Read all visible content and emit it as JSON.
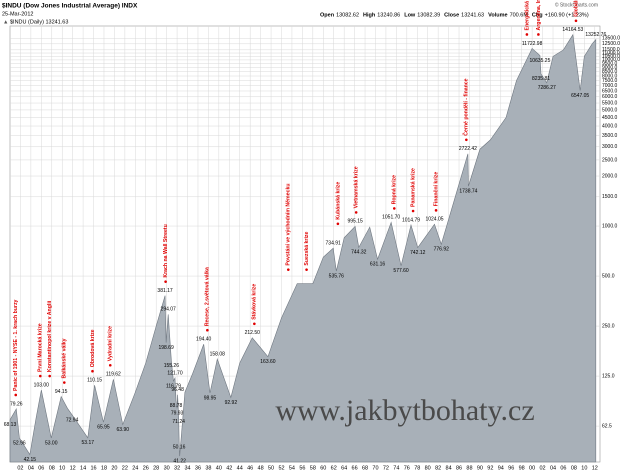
{
  "chart_data": {
    "type": "area",
    "title": "$INDU (Dow Jones Industrial Average) INDX",
    "subtitle": "25-Mar-2012",
    "credit": "© StockCharts.com",
    "legend_text": "$INDU (Daily) 13241.63",
    "quote": [
      {
        "label": "Open",
        "value": "13082.62"
      },
      {
        "label": "High",
        "value": "13240.86"
      },
      {
        "label": "Low",
        "value": "13082.39"
      },
      {
        "label": "Close",
        "value": "13241.63"
      },
      {
        "label": "Volume",
        "value": "700.6M"
      },
      {
        "label": "Chg",
        "value": "+160.90 (+1.23%)"
      }
    ],
    "watermark": "www.jakbytbohaty.cz",
    "log_scale": true,
    "grid": true,
    "xlim": [
      1900,
      2013
    ],
    "ylim": [
      38,
      16000
    ],
    "xticks": [
      {
        "value": 1902,
        "label": "02"
      },
      {
        "value": 1904,
        "label": "04"
      },
      {
        "value": 1906,
        "label": "06"
      },
      {
        "value": 1908,
        "label": "08"
      },
      {
        "value": 1910,
        "label": "10"
      },
      {
        "value": 1912,
        "label": "12"
      },
      {
        "value": 1914,
        "label": "14"
      },
      {
        "value": 1916,
        "label": "16"
      },
      {
        "value": 1918,
        "label": "18"
      },
      {
        "value": 1920,
        "label": "20"
      },
      {
        "value": 1922,
        "label": "22"
      },
      {
        "value": 1924,
        "label": "24"
      },
      {
        "value": 1926,
        "label": "26"
      },
      {
        "value": 1928,
        "label": "28"
      },
      {
        "value": 1930,
        "label": "30"
      },
      {
        "value": 1932,
        "label": "32"
      },
      {
        "value": 1934,
        "label": "34"
      },
      {
        "value": 1936,
        "label": "36"
      },
      {
        "value": 1938,
        "label": "38"
      },
      {
        "value": 1940,
        "label": "40"
      },
      {
        "value": 1942,
        "label": "42"
      },
      {
        "value": 1944,
        "label": "44"
      },
      {
        "value": 1946,
        "label": "46"
      },
      {
        "value": 1948,
        "label": "48"
      },
      {
        "value": 1950,
        "label": "50"
      },
      {
        "value": 1952,
        "label": "52"
      },
      {
        "value": 1954,
        "label": "54"
      },
      {
        "value": 1956,
        "label": "56"
      },
      {
        "value": 1958,
        "label": "58"
      },
      {
        "value": 1960,
        "label": "60"
      },
      {
        "value": 1962,
        "label": "62"
      },
      {
        "value": 1964,
        "label": "64"
      },
      {
        "value": 1966,
        "label": "66"
      },
      {
        "value": 1968,
        "label": "68"
      },
      {
        "value": 1970,
        "label": "70"
      },
      {
        "value": 1972,
        "label": "72"
      },
      {
        "value": 1974,
        "label": "74"
      },
      {
        "value": 1976,
        "label": "76"
      },
      {
        "value": 1978,
        "label": "78"
      },
      {
        "value": 1980,
        "label": "80"
      },
      {
        "value": 1982,
        "label": "82"
      },
      {
        "value": 1984,
        "label": "84"
      },
      {
        "value": 1986,
        "label": "86"
      },
      {
        "value": 1988,
        "label": "88"
      },
      {
        "value": 1990,
        "label": "90"
      },
      {
        "value": 1992,
        "label": "92"
      },
      {
        "value": 1994,
        "label": "94"
      },
      {
        "value": 1996,
        "label": "96"
      },
      {
        "value": 1998,
        "label": "98"
      },
      {
        "value": 2000,
        "label": "00"
      },
      {
        "value": 2002,
        "label": "02"
      },
      {
        "value": 2004,
        "label": "04"
      },
      {
        "value": 2006,
        "label": "06"
      },
      {
        "value": 2008,
        "label": "08"
      },
      {
        "value": 2010,
        "label": "10"
      },
      {
        "value": 2012,
        "label": "12"
      }
    ],
    "yticks": [
      62.5,
      {
        "value": 125,
        "label": "125.0"
      },
      {
        "value": 250,
        "label": "250.0"
      },
      {
        "value": 500,
        "label": "500.0"
      },
      {
        "value": 1000,
        "label": "1000.0"
      },
      {
        "value": 1500,
        "label": "1500.0"
      },
      {
        "value": 2000,
        "label": "2000.0"
      },
      {
        "value": 2500,
        "label": "2500.0"
      },
      {
        "value": 3000,
        "label": "3000.0"
      },
      {
        "value": 3500,
        "label": "3500.0"
      },
      {
        "value": 4000,
        "label": "4000.0"
      },
      {
        "value": 4500,
        "label": "4500.0"
      },
      {
        "value": 5000,
        "label": "5000.0"
      },
      {
        "value": 5500,
        "label": "5500.0"
      },
      {
        "value": 6000,
        "label": "6000.0"
      },
      {
        "value": 6500,
        "label": "6500.0"
      },
      {
        "value": 7000,
        "label": "7000.0"
      },
      {
        "value": 7500,
        "label": "7500.0"
      },
      {
        "value": 8000,
        "label": "8000.0"
      },
      {
        "value": 8500,
        "label": "8500.0"
      },
      {
        "value": 9000,
        "label": "9000.0"
      },
      {
        "value": 9500,
        "label": "9500.0"
      },
      {
        "value": 10000,
        "label": "10000.0"
      },
      {
        "value": 10500,
        "label": "10500.0"
      },
      {
        "value": 11000,
        "label": "11000.0"
      },
      {
        "value": 11500,
        "label": "11500.0"
      },
      {
        "value": 12500,
        "label": "12500.0"
      },
      {
        "value": 13500,
        "label": "13500.0"
      }
    ],
    "series": [
      {
        "name": "$INDU",
        "color": "#a8b0b8",
        "x": [
          1900.0,
          1901.2,
          1901.8,
          1903.8,
          1905.0,
          1906.0,
          1907.9,
          1909.8,
          1911.0,
          1911.9,
          1914.9,
          1916.2,
          1917.9,
          1919.8,
          1921.6,
          1924.0,
          1926.0,
          1928.0,
          1929.7,
          1929.9,
          1930.3,
          1930.9,
          1931.3,
          1931.6,
          1931.8,
          1932.0,
          1932.1,
          1932.3,
          1932.4,
          1932.5,
          1933.5,
          1935.0,
          1937.1,
          1938.3,
          1939.7,
          1942.3,
          1944.0,
          1946.4,
          1949.4,
          1952.0,
          1955.0,
          1958.0,
          1960.0,
          1961.9,
          1962.5,
          1964.0,
          1966.1,
          1966.8,
          1968.9,
          1970.4,
          1973.0,
          1974.9,
          1976.8,
          1978.1,
          1981.3,
          1982.6,
          1985.0,
          1987.7,
          1987.8,
          1990.0,
          1992.0,
          1995.0,
          1997.0,
          2000.0,
          2001.5,
          2001.7,
          2002.8,
          2004.0,
          2006.0,
          2007.8,
          2009.2,
          2010.0,
          2011.5,
          2012.2
        ],
        "values": [
          68.13,
          79.26,
          52.96,
          42.15,
          70,
          103.0,
          53.0,
          94.15,
          80,
          72.94,
          53.17,
          110.15,
          65.95,
          119.62,
          63.9,
          100,
          150,
          250,
          381.17,
          198.69,
          294.07,
          155.26,
          116.79,
          121.7,
          88.78,
          79.93,
          96.48,
          71.24,
          50.16,
          41.22,
          100,
          130,
          194.4,
          98.95,
          158.08,
          92.92,
          150,
          212.5,
          163.6,
          280,
          450,
          450,
          650,
          734.91,
          535.76,
          850,
          995.15,
          744.32,
          985,
          631.16,
          1051.7,
          577.6,
          1014.79,
          742.12,
          1024.05,
          776.92,
          1400,
          2722.42,
          1738.74,
          2900,
          3300,
          4500,
          7500,
          11722.98,
          10635.25,
          8235.81,
          7286.27,
          10500,
          11500,
          14164.53,
          6547.05,
          10500,
          12500,
          13252.76
        ],
        "value_labels": [
          "68.13",
          "79.26",
          "52.96",
          "42.15",
          null,
          "103.00",
          "53.00",
          "94.15",
          null,
          "72.94",
          "53.17",
          "110.15",
          "65.95",
          "119.62",
          "63.90",
          null,
          null,
          null,
          "381.17",
          "198.69",
          "294.07",
          "155.26",
          "116.79",
          "121.70",
          "88.78",
          "79.93",
          "96.48",
          "71.24",
          "50.16",
          "41.22",
          null,
          null,
          "194.40",
          "98.95",
          "158.08",
          "92.92",
          null,
          "212.50",
          "163.60",
          null,
          null,
          null,
          null,
          "734.91",
          "535.76",
          null,
          "995.15",
          "744.32",
          null,
          "631.16",
          "1051.70",
          "577.60",
          "1014.79",
          "742.12",
          "1024.05",
          "776.92",
          null,
          "2722.42",
          "1738.74",
          null,
          null,
          null,
          null,
          "11722.98",
          "10635.25",
          "8235.81",
          "7286.27",
          null,
          null,
          "14164.53",
          "6547.05",
          null,
          null,
          "13252.76"
        ]
      }
    ],
    "annotations": [
      {
        "x": 1901.1,
        "text": "Panic of 1901 - NYSE - 1. krach burzy"
      },
      {
        "x": 1905.8,
        "text": "První Marocká krize"
      },
      {
        "x": 1907.6,
        "text": "Konstantinopol krize v Anglii"
      },
      {
        "x": 1910.4,
        "text": "Balkánské války"
      },
      {
        "x": 1915.8,
        "text": "Obrodová krize"
      },
      {
        "x": 1919.2,
        "text": "Vydradní krize"
      },
      {
        "x": 1929.8,
        "text": "Krach na Wall Streetu"
      },
      {
        "x": 1937.8,
        "text": "Recese, 2.světová válka"
      },
      {
        "x": 1946.8,
        "text": "Stávková krize"
      },
      {
        "x": 1953.3,
        "text": "Povstání ve východním Německu"
      },
      {
        "x": 1956.8,
        "text": "Suezská krize"
      },
      {
        "x": 1962.8,
        "text": "Kubánská krize"
      },
      {
        "x": 1966.3,
        "text": "Vietnamská krize"
      },
      {
        "x": 1973.6,
        "text": "Ropná krize"
      },
      {
        "x": 1977.2,
        "text": "Panamská krize"
      },
      {
        "x": 1981.6,
        "text": "Finanční krize"
      },
      {
        "x": 1987.4,
        "text": "Černé pondělí - finance"
      },
      {
        "x": 1999.0,
        "text": "Energetická krize"
      },
      {
        "x": 2001.2,
        "text": "Argentina, Irák"
      },
      {
        "x": 2008.4,
        "text": "Globální finanční krize"
      }
    ]
  }
}
